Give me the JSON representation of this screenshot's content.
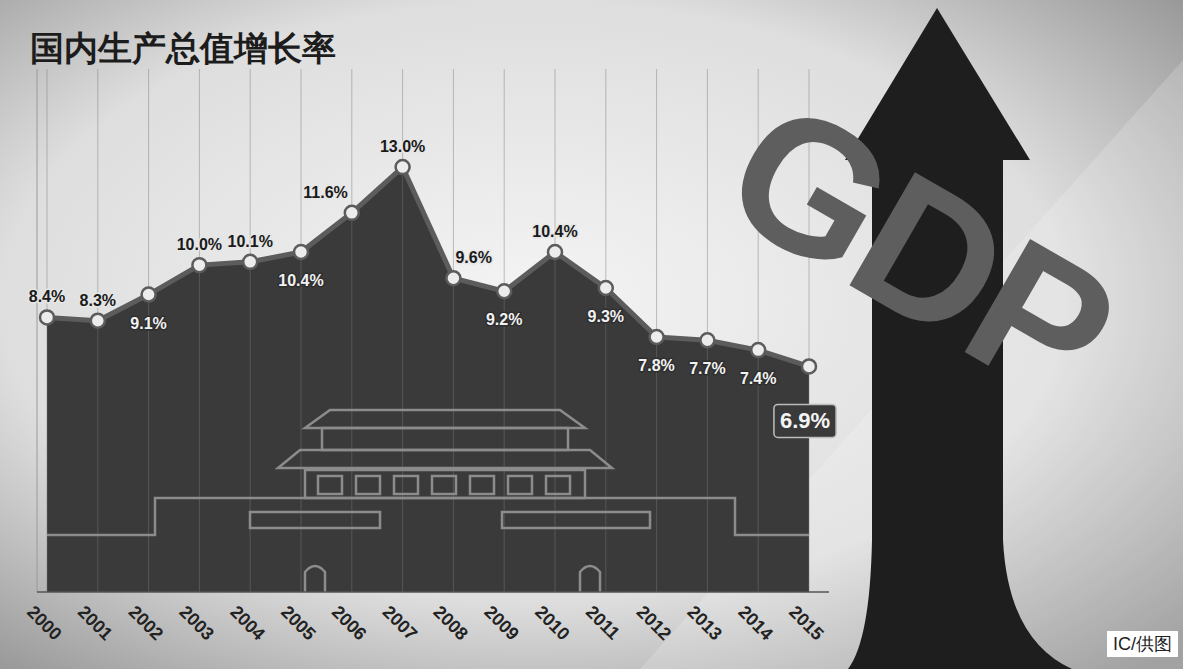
{
  "chart_data": {
    "type": "area",
    "title": "国内生产总值增长率",
    "categories": [
      "2000",
      "2001",
      "2002",
      "2003",
      "2004",
      "2005",
      "2006",
      "2007",
      "2008",
      "2009",
      "2010",
      "2011",
      "2012",
      "2013",
      "2014",
      "2015"
    ],
    "values": [
      8.4,
      8.3,
      9.1,
      10.0,
      10.1,
      10.4,
      11.6,
      13.0,
      9.6,
      9.2,
      10.4,
      9.3,
      7.8,
      7.7,
      7.4,
      6.9
    ],
    "value_labels": [
      "8.4%",
      "8.3%",
      "9.1%",
      "10.0%",
      "10.1%",
      "10.4%",
      "11.6%",
      "13.0%",
      "9.6%",
      "9.2%",
      "10.4%",
      "9.3%",
      "7.8%",
      "7.7%",
      "7.4%",
      "6.9%"
    ],
    "color": "#3a3a3a",
    "ylim": [
      0,
      16
    ],
    "grid": true,
    "data_labels": true,
    "tick_labels": "x",
    "marker": "circle",
    "annotations": [
      "GDP"
    ],
    "source": "IC/供图"
  }
}
